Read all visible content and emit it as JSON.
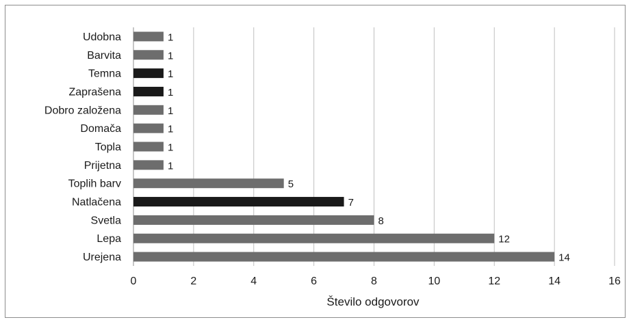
{
  "chart_data": {
    "type": "bar",
    "orientation": "horizontal",
    "categories": [
      "Udobna",
      "Barvita",
      "Temna",
      "Zaprašena",
      "Dobro založena",
      "Domača",
      "Topla",
      "Prijetna",
      "Toplih barv",
      "Natlačena",
      "Svetla",
      "Lepa",
      "Urejena"
    ],
    "values": [
      1,
      1,
      1,
      1,
      1,
      1,
      1,
      1,
      5,
      7,
      8,
      12,
      14
    ],
    "highlighted": [
      false,
      false,
      true,
      true,
      false,
      false,
      false,
      false,
      false,
      true,
      false,
      false,
      false
    ],
    "xlabel": "Število odgovorov",
    "xlim": [
      0,
      16
    ],
    "xticks": [
      0,
      2,
      4,
      6,
      8,
      10,
      12,
      14,
      16
    ],
    "grid": "vertical",
    "legend": "none",
    "colors": {
      "default": "#6d6d6d",
      "highlight": "#1a1a1a",
      "grid": "#bfbfbf",
      "axis": "#8c8c8c"
    }
  }
}
